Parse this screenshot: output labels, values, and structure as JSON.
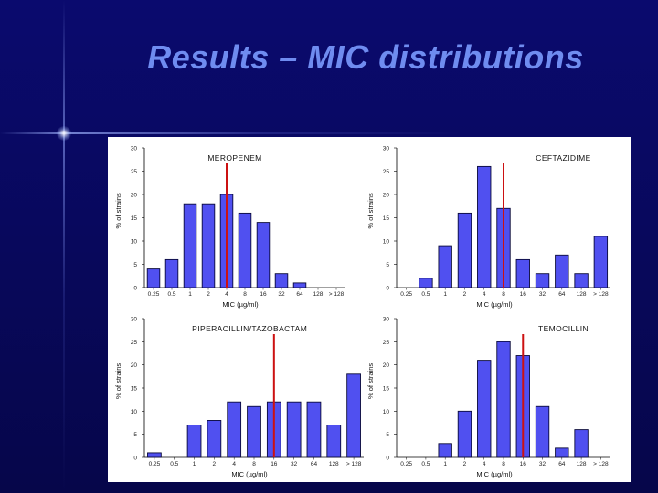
{
  "slide": {
    "title": "Results – MIC distributions"
  },
  "colors": {
    "bar_fill": "#5050f0",
    "bar_stroke": "#0a0a3a",
    "breakpoint_line": "#cc1111"
  },
  "chart_data": [
    {
      "type": "bar",
      "title": "MEROPENEM",
      "categories": [
        "0.25",
        "0.5",
        "1",
        "2",
        "4",
        "8",
        "16",
        "32",
        "64",
        "128",
        "> 128"
      ],
      "values": [
        4,
        6,
        18,
        18,
        20,
        16,
        14,
        3,
        1,
        0,
        0
      ],
      "breakpoint_x": 4.5,
      "xlabel": "MIC (µg/ml)",
      "ylabel": "% of strains",
      "ylim": [
        0,
        30
      ],
      "yticks": [
        0,
        5,
        10,
        15,
        20,
        25,
        30
      ]
    },
    {
      "type": "bar",
      "title": "CEFTAZIDIME",
      "categories": [
        "0.25",
        "0.5",
        "1",
        "2",
        "4",
        "8",
        "16",
        "32",
        "64",
        "128",
        "> 128"
      ],
      "values": [
        0,
        2,
        9,
        16,
        26,
        17,
        6,
        3,
        7,
        3,
        11
      ],
      "breakpoint_x": 5.5,
      "xlabel": "MIC (µg/ml)",
      "ylabel": "% of strains",
      "ylim": [
        0,
        30
      ],
      "yticks": [
        0,
        5,
        10,
        15,
        20,
        25,
        30
      ]
    },
    {
      "type": "bar",
      "title": "PIPERACILLIN/TAZOBACTAM",
      "categories": [
        "0.25",
        "0.5",
        "1",
        "2",
        "4",
        "8",
        "16",
        "32",
        "64",
        "128",
        "> 128"
      ],
      "values": [
        1,
        0,
        7,
        8,
        12,
        11,
        12,
        12,
        12,
        7,
        18
      ],
      "breakpoint_x": 6.5,
      "xlabel": "MIC (µg/ml)",
      "ylabel": "% of strains",
      "ylim": [
        0,
        30
      ],
      "yticks": [
        0,
        5,
        10,
        15,
        20,
        25,
        30
      ]
    },
    {
      "type": "bar",
      "title": "TEMOCILLIN",
      "categories": [
        "0.25",
        "0.5",
        "1",
        "2",
        "4",
        "8",
        "16",
        "32",
        "64",
        "128",
        "> 128"
      ],
      "values": [
        0,
        0,
        3,
        10,
        21,
        25,
        22,
        11,
        2,
        6,
        0
      ],
      "breakpoint_x": 6.5,
      "xlabel": "MIC (µg/ml)",
      "ylabel": "% of strains",
      "ylim": [
        0,
        30
      ],
      "yticks": [
        0,
        5,
        10,
        15,
        20,
        25,
        30
      ]
    }
  ]
}
